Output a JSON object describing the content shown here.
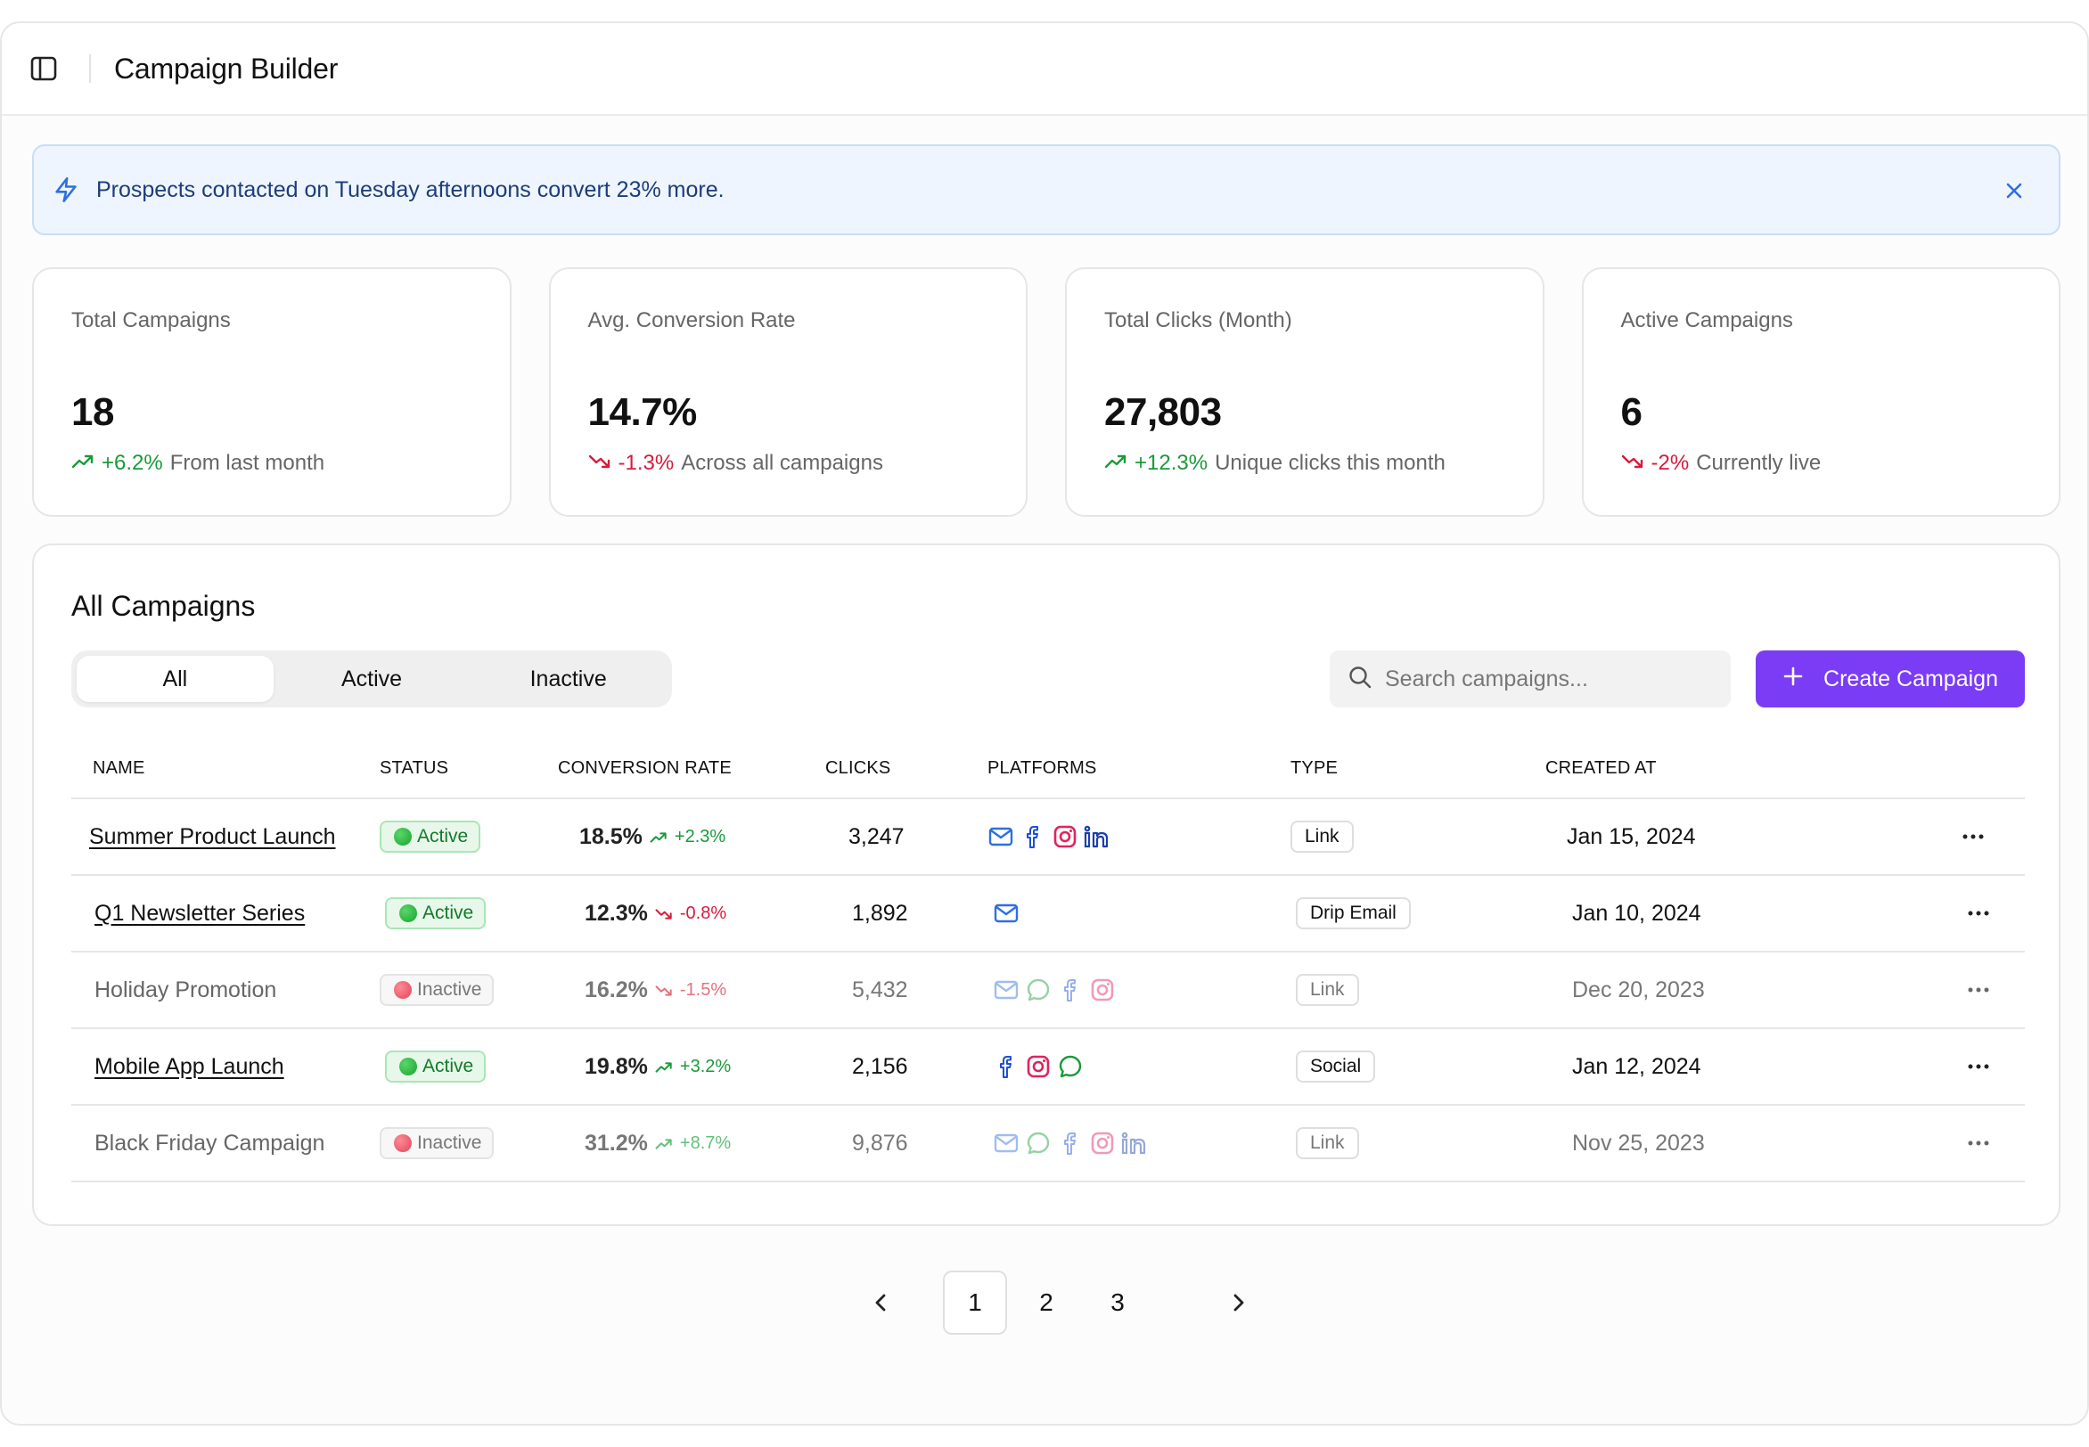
{
  "header": {
    "title": "Campaign Builder",
    "toggle_icon": "sidebar-toggle-icon"
  },
  "banner": {
    "message": "Prospects contacted on Tuesday afternoons convert 23% more.",
    "icon": "lightning-icon",
    "close_icon": "close-icon"
  },
  "stats": [
    {
      "label": "Total Campaigns",
      "value": "18",
      "change": "+6.2%",
      "direction": "up",
      "note": "From last month"
    },
    {
      "label": "Avg. Conversion Rate",
      "value": "14.7%",
      "change": "-1.3%",
      "direction": "down",
      "note": "Across all campaigns"
    },
    {
      "label": "Total Clicks (Month)",
      "value": "27,803",
      "change": "+12.3%",
      "direction": "up",
      "note": "Unique clicks this month"
    },
    {
      "label": "Active Campaigns",
      "value": "6",
      "change": "-2%",
      "direction": "down",
      "note": "Currently live"
    }
  ],
  "campaigns": {
    "heading": "All Campaigns",
    "tabs": [
      {
        "label": "All",
        "selected": true
      },
      {
        "label": "Active",
        "selected": false
      },
      {
        "label": "Inactive",
        "selected": false
      }
    ],
    "search": {
      "placeholder": "Search campaigns...",
      "value": ""
    },
    "create_button": "Create Campaign",
    "columns": [
      "NAME",
      "STATUS",
      "CONVERSION RATE",
      "CLICKS",
      "PLATFORMS",
      "TYPE",
      "CREATED AT"
    ],
    "rows": [
      {
        "name": "Summer Product Launch",
        "status": "Active",
        "rate": "18.5%",
        "delta": "+2.3%",
        "delta_dir": "up",
        "clicks": "3,247",
        "platforms": [
          "email",
          "facebook",
          "instagram",
          "linkedin"
        ],
        "type": "Link",
        "created": "Jan 15, 2024"
      },
      {
        "name": "Q1 Newsletter Series",
        "status": "Active",
        "rate": "12.3%",
        "delta": "-0.8%",
        "delta_dir": "down",
        "clicks": "1,892",
        "platforms": [
          "email"
        ],
        "type": "Drip Email",
        "created": "Jan 10, 2024"
      },
      {
        "name": "Holiday Promotion",
        "status": "Inactive",
        "rate": "16.2%",
        "delta": "-1.5%",
        "delta_dir": "down",
        "clicks": "5,432",
        "platforms": [
          "email",
          "chat",
          "facebook",
          "instagram"
        ],
        "type": "Link",
        "created": "Dec 20, 2023"
      },
      {
        "name": "Mobile App Launch",
        "status": "Active",
        "rate": "19.8%",
        "delta": "+3.2%",
        "delta_dir": "up",
        "clicks": "2,156",
        "platforms": [
          "facebook",
          "instagram",
          "chat"
        ],
        "type": "Social",
        "created": "Jan 12, 2024"
      },
      {
        "name": "Black Friday Campaign",
        "status": "Inactive",
        "rate": "31.2%",
        "delta": "+8.7%",
        "delta_dir": "up",
        "clicks": "9,876",
        "platforms": [
          "email",
          "chat",
          "facebook",
          "instagram",
          "linkedin"
        ],
        "type": "Link",
        "created": "Nov 25, 2023"
      }
    ]
  },
  "pagination": {
    "pages": [
      "1",
      "2",
      "3"
    ],
    "current": "1",
    "prev_icon": "chevron-left-icon",
    "next_icon": "chevron-right-icon"
  },
  "colors": {
    "accent": "#7a3cf5",
    "up": "#1a9a3a",
    "down": "#d81b3b",
    "email": "#2f6fe0",
    "facebook": "#1d4fd6",
    "instagram": "#e0245e",
    "linkedin": "#1d3fa8",
    "chat": "#1a9a3a"
  }
}
